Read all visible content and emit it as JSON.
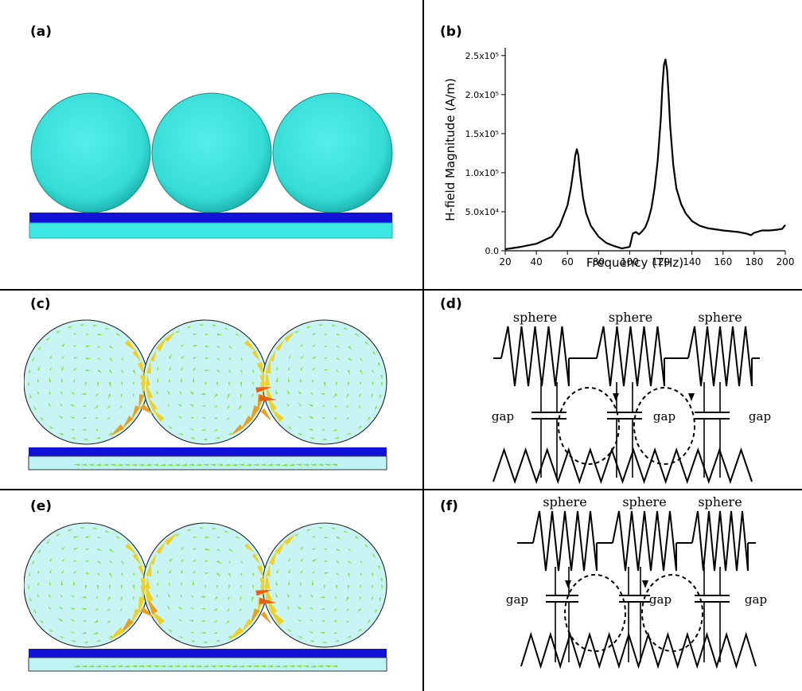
{
  "panels": {
    "a": {
      "label": "(a)"
    },
    "b": {
      "label": "(b)"
    },
    "c": {
      "label": "(c)"
    },
    "d": {
      "label": "(d)"
    },
    "e": {
      "label": "(e)"
    },
    "f": {
      "label": "(f)"
    }
  },
  "circuit": {
    "sphere_label": "sphere",
    "gap_label": "gap"
  },
  "colors": {
    "sphere": "#3fe6e0",
    "sphere_shadow": "#1aa8a8",
    "substrate_top": "#1212d8",
    "substrate_bottom": "#8ff0f0",
    "field_sphere": "#c8f4f4",
    "arrow_small": "#7ee23a",
    "arrow_mid": "#f0d020",
    "arrow_big": "#e86010"
  },
  "chart_data": {
    "type": "line",
    "xlabel": "Frequency (THz)",
    "ylabel": "H-field Magnitude (A/m)",
    "xlim": [
      20,
      200
    ],
    "ylim": [
      0,
      260000
    ],
    "xticks": [
      20,
      40,
      60,
      80,
      100,
      120,
      140,
      160,
      180,
      200
    ],
    "yticks": [
      0,
      50000,
      100000,
      150000,
      200000,
      250000
    ],
    "ytick_labels": [
      "0.0",
      "5.0x10⁴",
      "1.0x10⁵",
      "1.5x10⁵",
      "2.0x10⁵",
      "2.5x10⁵"
    ],
    "series": [
      {
        "x": [
          20,
          30,
          40,
          50,
          55,
          60,
          62,
          64,
          65,
          66,
          67,
          68,
          70,
          72,
          75,
          80,
          85,
          90,
          95,
          100,
          102,
          104,
          106,
          108,
          110,
          112,
          114,
          116,
          118,
          120,
          121,
          122,
          123,
          124,
          125,
          126,
          128,
          130,
          133,
          136,
          140,
          145,
          150,
          160,
          170,
          175,
          178,
          180,
          185,
          190,
          195,
          198,
          200
        ],
        "y": [
          2000,
          5000,
          9000,
          18000,
          32000,
          58000,
          78000,
          105000,
          122000,
          130000,
          122000,
          100000,
          68000,
          48000,
          32000,
          18000,
          10000,
          6000,
          3000,
          5000,
          22000,
          24000,
          21000,
          25000,
          30000,
          40000,
          55000,
          80000,
          115000,
          170000,
          210000,
          238000,
          245000,
          232000,
          200000,
          160000,
          110000,
          80000,
          60000,
          48000,
          38000,
          32000,
          29000,
          26000,
          24000,
          22000,
          20000,
          23000,
          26000,
          26000,
          27000,
          28000,
          33000
        ]
      }
    ]
  }
}
